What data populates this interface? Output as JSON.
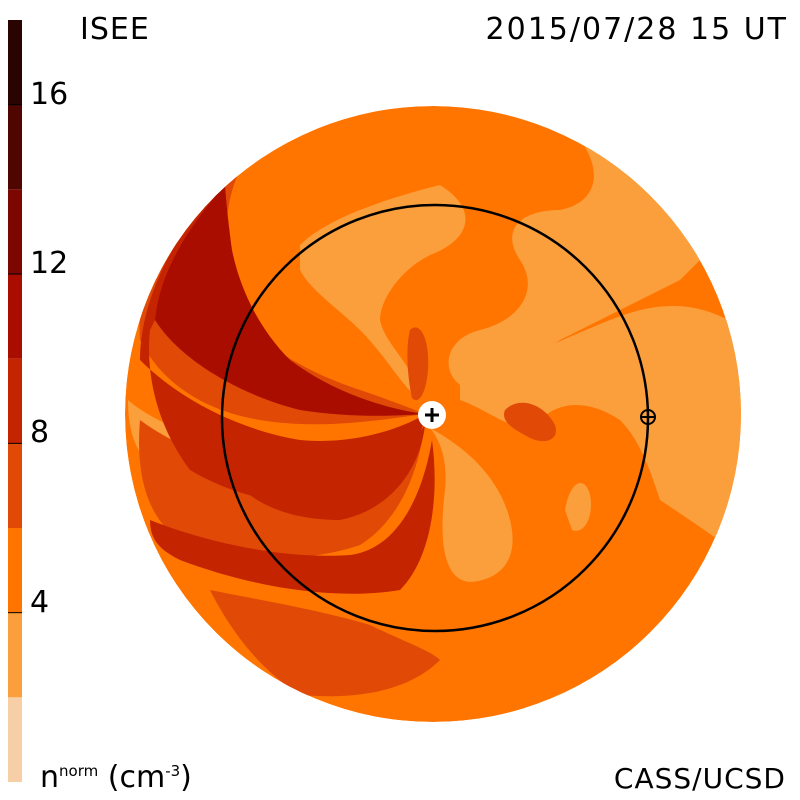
{
  "header": {
    "label_left": "ISEE",
    "timestamp": "2015/07/28 15 UT"
  },
  "footer": {
    "credit": "CASS/UCSD",
    "unit_base": "n",
    "unit_sup": "norm",
    "unit_rest": " (cm",
    "unit_exp": "-3",
    "unit_close": ")"
  },
  "colorbar": {
    "min": 0,
    "max": 18,
    "ticks": [
      {
        "value": 16,
        "label": "16"
      },
      {
        "value": 12,
        "label": "12"
      },
      {
        "value": 8,
        "label": "8"
      },
      {
        "value": 4,
        "label": "4"
      }
    ],
    "levels": [
      {
        "from": 0,
        "to": 2,
        "color": "#f7cfa6"
      },
      {
        "from": 2,
        "to": 4,
        "color": "#fb9f3c"
      },
      {
        "from": 4,
        "to": 6,
        "color": "#ff7500"
      },
      {
        "from": 6,
        "to": 8,
        "color": "#e04a06"
      },
      {
        "from": 8,
        "to": 10,
        "color": "#c52400"
      },
      {
        "from": 10,
        "to": 12,
        "color": "#a90d00"
      },
      {
        "from": 12,
        "to": 14,
        "color": "#7c0700"
      },
      {
        "from": 14,
        "to": 16,
        "color": "#4f0500"
      },
      {
        "from": 16,
        "to": 18,
        "color": "#2a0400"
      }
    ]
  },
  "colors": {
    "level_2_4": "#fb9f3c",
    "level_4_6": "#ff7500",
    "level_6_8": "#e04a06",
    "level_8_10": "#c52400",
    "level_10_12": "#a90d00",
    "orbit": "#000000"
  },
  "markers": {
    "sun": "sun-plus-icon",
    "earth": "earth-circle-plus-icon"
  }
}
